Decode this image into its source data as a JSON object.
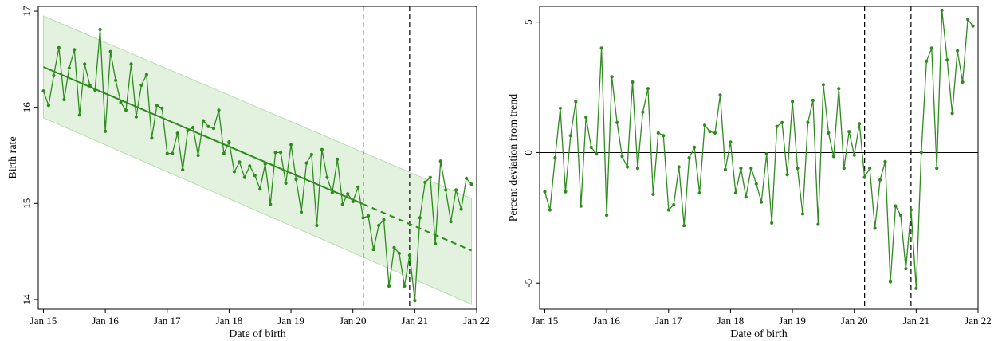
{
  "figure": {
    "colors": {
      "series": "#2e8b1e",
      "band": "#d9ecd4",
      "band_edge": "#b9dbb0",
      "axis": "#000000"
    }
  },
  "chart_data": [
    {
      "type": "line",
      "xlabel": "Date of birth",
      "ylabel": "Birth rate",
      "xlim": [
        "2014-12",
        "2022-01"
      ],
      "ylim": [
        13.9,
        17.05
      ],
      "x_ticks": [
        {
          "x": "2015-01",
          "label": "Jan 15"
        },
        {
          "x": "2016-01",
          "label": "Jan 16"
        },
        {
          "x": "2017-01",
          "label": "Jan 17"
        },
        {
          "x": "2018-01",
          "label": "Jan 18"
        },
        {
          "x": "2019-01",
          "label": "Jan 19"
        },
        {
          "x": "2020-01",
          "label": "Jan 20"
        },
        {
          "x": "2021-01",
          "label": "Jan 21"
        },
        {
          "x": "2022-01",
          "label": "Jan 22"
        }
      ],
      "y_ticks": [
        14,
        15,
        16,
        17
      ],
      "vlines": [
        "2020-03",
        "2020-12"
      ],
      "series": [
        {
          "start": "2015-01",
          "values": [
            16.17,
            16.02,
            16.33,
            16.62,
            16.08,
            16.41,
            16.6,
            15.92,
            16.45,
            16.23,
            16.18,
            16.81,
            15.75,
            16.58,
            16.28,
            16.05,
            15.97,
            16.45,
            15.9,
            16.23,
            16.34,
            15.68,
            16.02,
            15.99,
            15.52,
            15.52,
            15.73,
            15.35,
            15.76,
            15.79,
            15.5,
            15.86,
            15.8,
            15.78,
            15.97,
            15.52,
            15.64,
            15.33,
            15.43,
            15.27,
            15.39,
            15.29,
            15.15,
            15.41,
            14.99,
            15.53,
            15.53,
            15.21,
            15.61,
            15.25,
            14.91,
            15.42,
            15.51,
            14.77,
            15.56,
            15.27,
            15.11,
            15.46,
            14.99,
            15.1,
            15.02,
            15.17,
            14.85,
            14.87,
            14.52,
            14.77,
            14.83,
            14.14,
            14.54,
            14.48,
            14.14,
            14.46,
            13.99,
            14.85,
            15.22,
            15.27,
            14.58,
            15.44,
            15.14,
            14.81,
            15.14,
            14.94,
            15.26,
            15.2
          ]
        }
      ],
      "trend": {
        "start": "2015-01",
        "end": "2021-12",
        "start_value": 16.42,
        "end_value": 14.51,
        "dashed_from": "2020-03"
      },
      "band": {
        "upper_start": 16.95,
        "upper_end": 15.05,
        "lower_start": 15.89,
        "lower_end": 13.95
      }
    },
    {
      "type": "line",
      "xlabel": "Date of birth",
      "ylabel": "Percent deviation from trend",
      "xlim": [
        "2014-12",
        "2022-01"
      ],
      "ylim": [
        -6.0,
        5.6
      ],
      "x_ticks": [
        {
          "x": "2015-01",
          "label": "Jan 15"
        },
        {
          "x": "2016-01",
          "label": "Jan 16"
        },
        {
          "x": "2017-01",
          "label": "Jan 17"
        },
        {
          "x": "2018-01",
          "label": "Jan 18"
        },
        {
          "x": "2019-01",
          "label": "Jan 19"
        },
        {
          "x": "2020-01",
          "label": "Jan 20"
        },
        {
          "x": "2021-01",
          "label": "Jan 21"
        },
        {
          "x": "2022-01",
          "label": "Jan 22"
        }
      ],
      "y_ticks": [
        {
          "v": 5,
          "label": "5"
        },
        {
          "v": 0,
          "label": "0"
        },
        {
          "v": -5,
          "label": "-5"
        }
      ],
      "hline": 0,
      "vlines": [
        "2020-03",
        "2020-12"
      ],
      "series": [
        {
          "start": "2015-01",
          "values": [
            -1.5,
            -2.2,
            -0.2,
            1.7,
            -1.5,
            0.65,
            1.95,
            -2.05,
            1.35,
            0.2,
            -0.05,
            4.0,
            -2.4,
            2.9,
            1.15,
            -0.15,
            -0.55,
            2.7,
            -0.6,
            1.55,
            2.45,
            -1.6,
            0.75,
            0.65,
            -2.2,
            -2.0,
            -0.55,
            -2.8,
            -0.2,
            0.2,
            -1.55,
            1.05,
            0.8,
            0.75,
            2.2,
            -0.65,
            0.4,
            -1.55,
            -0.6,
            -1.7,
            -0.6,
            -1.2,
            -1.9,
            -0.05,
            -2.7,
            1.0,
            1.15,
            -0.85,
            1.95,
            -0.6,
            -2.35,
            1.15,
            2.0,
            -2.75,
            2.6,
            0.75,
            -0.15,
            2.45,
            -0.6,
            0.8,
            -0.1,
            1.1,
            -0.95,
            -0.6,
            -2.9,
            -1.05,
            -0.35,
            -4.95,
            -2.05,
            -2.4,
            -4.45,
            -2.2,
            -5.2,
            0.0,
            3.5,
            4.0,
            -0.6,
            5.45,
            3.55,
            1.5,
            3.9,
            2.7,
            5.1,
            4.85
          ]
        }
      ]
    }
  ]
}
